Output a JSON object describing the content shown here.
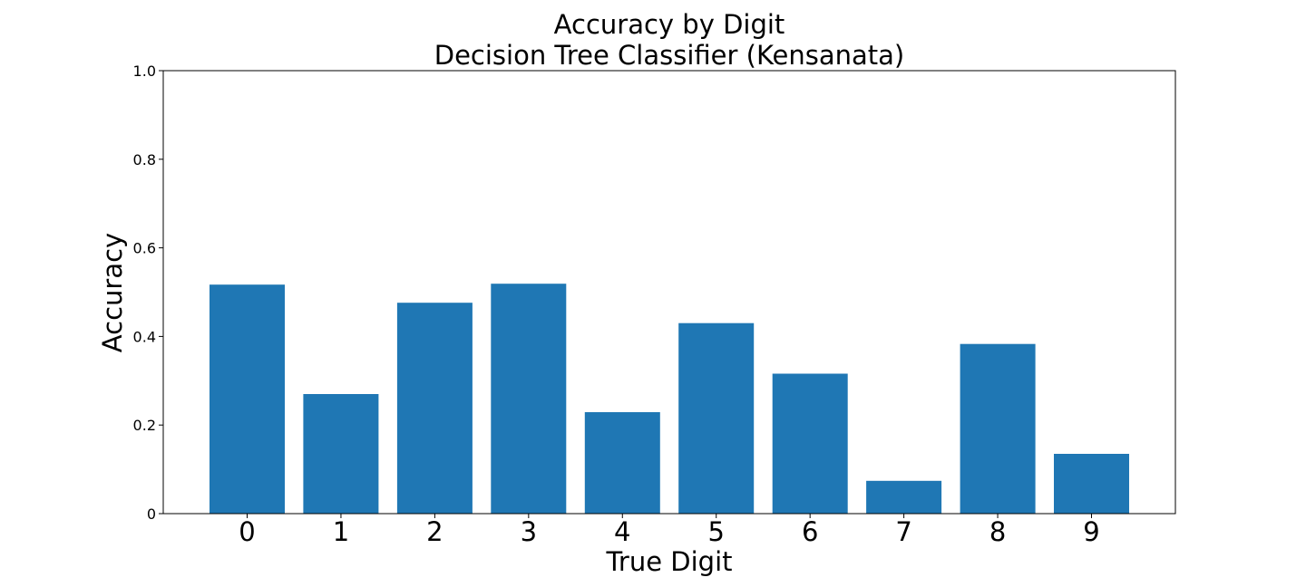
{
  "colors": {
    "bar": "#1f77b4",
    "axis": "#000000",
    "background": "#ffffff"
  },
  "chart_data": {
    "type": "bar",
    "title": "Accuracy by Digit",
    "subtitle": "Decision Tree Classifier (Kensanata)",
    "xlabel": "True Digit",
    "ylabel": "Accuracy",
    "categories": [
      "0",
      "1",
      "2",
      "3",
      "4",
      "5",
      "6",
      "7",
      "8",
      "9"
    ],
    "values": [
      0.517,
      0.27,
      0.476,
      0.519,
      0.229,
      0.43,
      0.316,
      0.074,
      0.383,
      0.135
    ],
    "ylim": [
      0,
      1.0
    ],
    "yticks": [
      0,
      0.2,
      0.4,
      0.6,
      0.8,
      1.0
    ],
    "ytick_labels": [
      "0",
      "0.2",
      "0.4",
      "0.6",
      "0.8",
      "1.0"
    ],
    "grid": false,
    "legend": "none"
  }
}
